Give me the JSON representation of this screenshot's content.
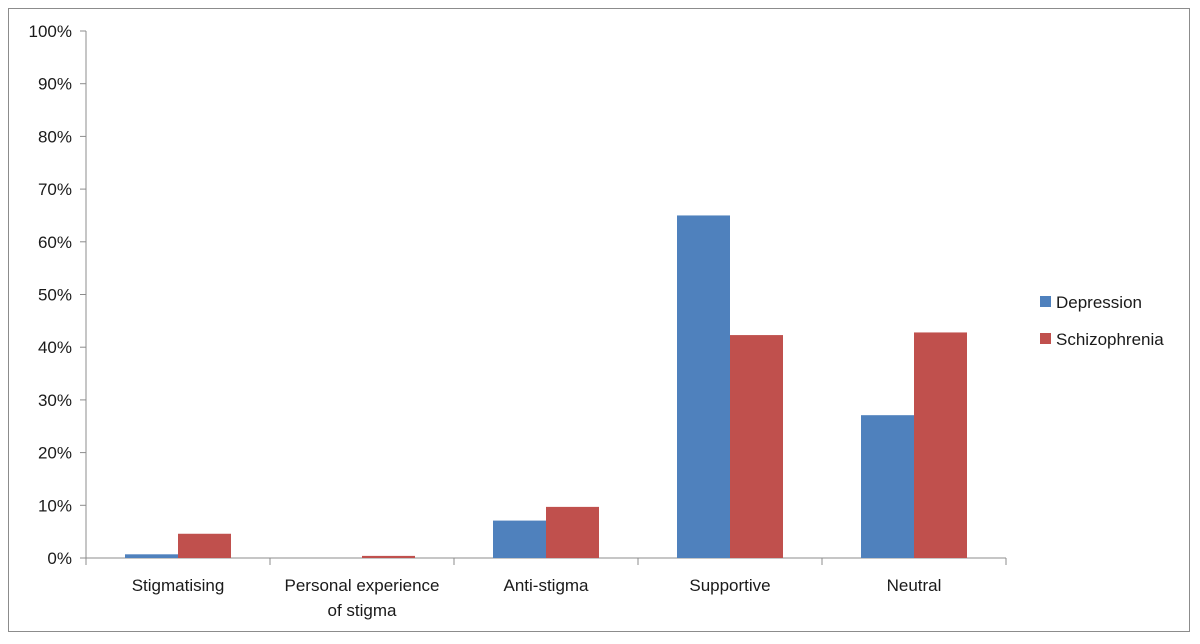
{
  "chart_data": {
    "type": "bar",
    "title": "",
    "xlabel": "",
    "ylabel": "",
    "categories": [
      [
        "Stigmatising"
      ],
      [
        "Personal experience",
        "of stigma"
      ],
      [
        "Anti-stigma"
      ],
      [
        "Supportive"
      ],
      [
        "Neutral"
      ]
    ],
    "series": [
      {
        "name": "Depression",
        "color": "#4f81bd",
        "values": [
          0.7,
          0.0,
          7.1,
          65.0,
          27.1
        ]
      },
      {
        "name": "Schizophrenia",
        "color": "#c0504d",
        "values": [
          4.6,
          0.4,
          9.7,
          42.3,
          42.8
        ]
      }
    ],
    "ylim": [
      0,
      100
    ],
    "yticks": [
      0,
      10,
      20,
      30,
      40,
      50,
      60,
      70,
      80,
      90,
      100
    ],
    "ytick_labels": [
      "0%",
      "10%",
      "20%",
      "30%",
      "40%",
      "50%",
      "60%",
      "70%",
      "80%",
      "90%",
      "100%"
    ],
    "grid": false,
    "legend": "right"
  }
}
